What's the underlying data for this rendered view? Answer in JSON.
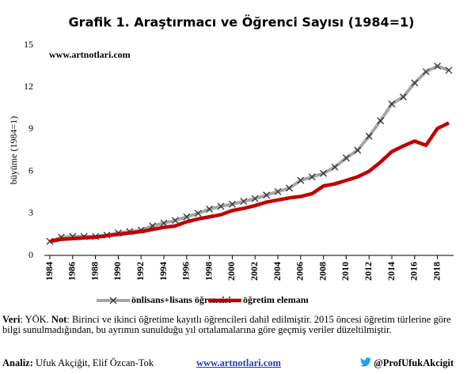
{
  "chart_data": {
    "type": "line",
    "title": "Grafik 1. Araştırmacı ve Öğrenci Sayısı (1984=1)",
    "watermark": "www.artnotlari.com",
    "y_label": "büyüme (1984=1)",
    "x": [
      1984,
      1985,
      1986,
      1987,
      1988,
      1989,
      1990,
      1991,
      1992,
      1993,
      1994,
      1995,
      1996,
      1997,
      1998,
      1999,
      2000,
      2001,
      2002,
      2003,
      2004,
      2005,
      2006,
      2007,
      2008,
      2009,
      2010,
      2011,
      2012,
      2013,
      2014,
      2015,
      2016,
      2017,
      2018,
      2019
    ],
    "xlim": [
      1984,
      2019
    ],
    "xticks": [
      1984,
      1986,
      1988,
      1990,
      1992,
      1994,
      1996,
      1998,
      2000,
      2002,
      2004,
      2006,
      2008,
      2010,
      2012,
      2014,
      2016,
      2018
    ],
    "ylim": [
      0,
      15
    ],
    "yticks": [
      0,
      3,
      6,
      9,
      12,
      15
    ],
    "series": [
      {
        "name": "önlisans+lisans öğrencisi",
        "color": "#a6a6a6",
        "values": [
          1.0,
          1.3,
          1.35,
          1.35,
          1.35,
          1.45,
          1.6,
          1.7,
          1.8,
          2.1,
          2.3,
          2.5,
          2.75,
          3.0,
          3.3,
          3.5,
          3.65,
          3.85,
          4.05,
          4.3,
          4.55,
          4.8,
          5.35,
          5.6,
          5.85,
          6.3,
          6.95,
          7.5,
          8.5,
          9.6,
          10.8,
          11.3,
          12.3,
          13.1,
          13.5,
          13.2
        ]
      },
      {
        "name": "öğretim elemanı",
        "color": "#c00000",
        "values": [
          1.0,
          1.15,
          1.2,
          1.25,
          1.3,
          1.4,
          1.5,
          1.6,
          1.7,
          1.85,
          2.0,
          2.1,
          2.4,
          2.6,
          2.75,
          2.9,
          3.2,
          3.35,
          3.55,
          3.8,
          3.95,
          4.1,
          4.2,
          4.4,
          4.95,
          5.1,
          5.35,
          5.6,
          6.0,
          6.65,
          7.4,
          7.8,
          8.15,
          7.85,
          9.05,
          9.45
        ]
      }
    ]
  },
  "footer": {
    "source_label": "Veri",
    "source_text": ": YÖK. ",
    "note_label": "Not",
    "note_text": ": Birinci ve ikinci öğretime kayıtlı öğrencileri dahil edilmiştir. 2015 öncesi öğretim türlerine göre bilgi sunulmadığından, bu ayrımın sunulduğu yıl ortalamalarına göre geçmiş veriler düzeltilmiştir.",
    "analysis_label": "Analiz:",
    "analysis_text": " Ufuk Akçiğit, Elif Özcan-Tok",
    "website": "www.artnotlari.com",
    "twitter": "@ProfUfukAkcigit"
  }
}
